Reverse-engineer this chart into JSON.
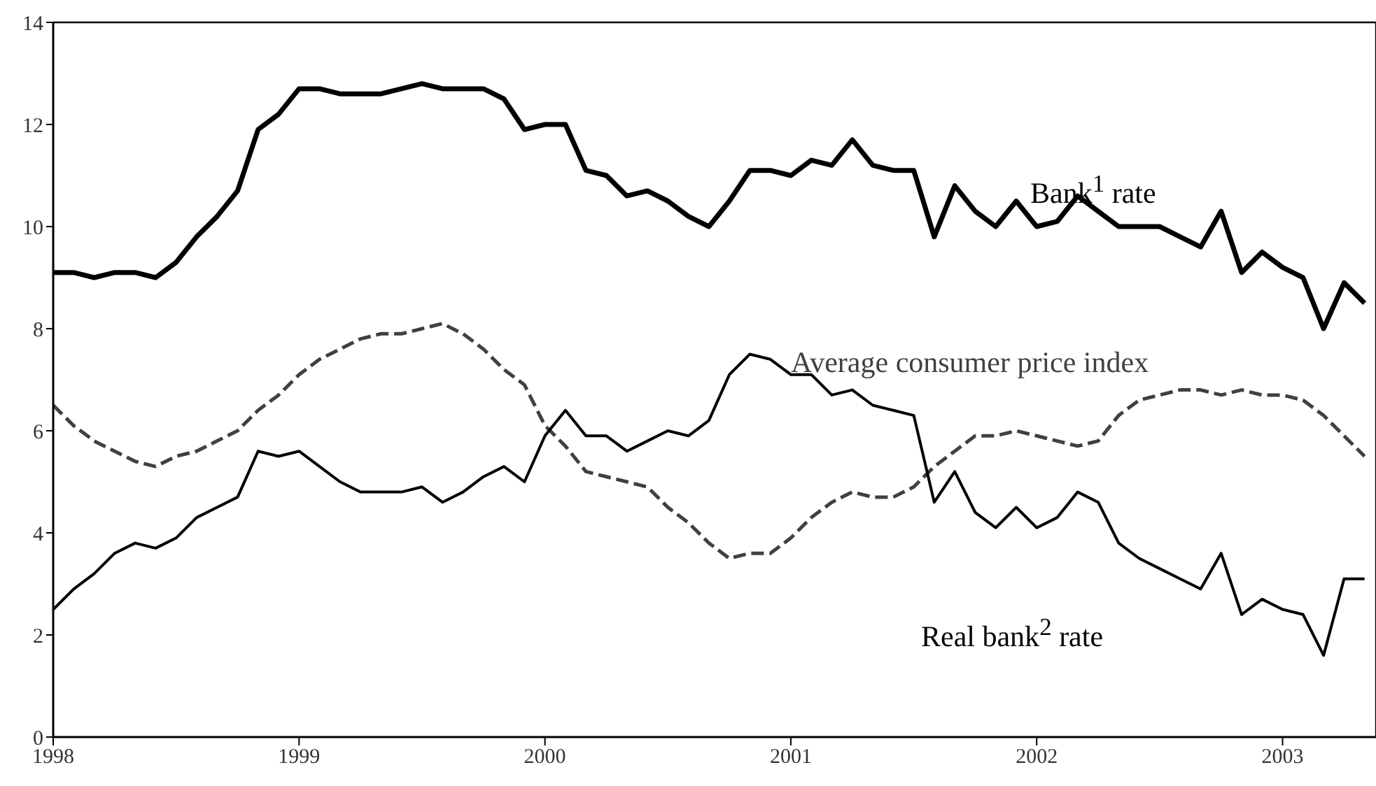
{
  "chart_data": {
    "type": "line",
    "x": [
      "1998-01",
      "1998-02",
      "1998-03",
      "1998-04",
      "1998-05",
      "1998-06",
      "1998-07",
      "1998-08",
      "1998-09",
      "1998-10",
      "1998-11",
      "1998-12",
      "1999-01",
      "1999-02",
      "1999-03",
      "1999-04",
      "1999-05",
      "1999-06",
      "1999-07",
      "1999-08",
      "1999-09",
      "1999-10",
      "1999-11",
      "1999-12",
      "2000-01",
      "2000-02",
      "2000-03",
      "2000-04",
      "2000-05",
      "2000-06",
      "2000-07",
      "2000-08",
      "2000-09",
      "2000-10",
      "2000-11",
      "2000-12",
      "2001-01",
      "2001-02",
      "2001-03",
      "2001-04",
      "2001-05",
      "2001-06",
      "2001-07",
      "2001-08",
      "2001-09",
      "2001-10",
      "2001-11",
      "2001-12",
      "2002-01",
      "2002-02",
      "2002-03",
      "2002-04",
      "2002-05",
      "2002-06",
      "2002-07",
      "2002-08",
      "2002-09",
      "2002-10",
      "2002-11",
      "2002-12",
      "2003-01",
      "2003-02",
      "2003-03",
      "2003-04",
      "2003-05"
    ],
    "series": [
      {
        "name": "Bank$^{1}$ rate",
        "color": "#000000",
        "line_style": "solid",
        "values": [
          9.1,
          9.1,
          9.0,
          9.1,
          9.1,
          9.0,
          9.3,
          9.8,
          10.2,
          10.7,
          11.9,
          12.2,
          12.7,
          12.7,
          12.6,
          12.6,
          12.6,
          12.7,
          12.8,
          12.7,
          12.7,
          12.7,
          12.5,
          11.9,
          12.0,
          12.0,
          11.1,
          11.0,
          10.6,
          10.7,
          10.5,
          10.2,
          10.0,
          10.5,
          11.1,
          11.1,
          11.0,
          11.3,
          11.2,
          11.7,
          11.2,
          11.1,
          11.1,
          9.8,
          10.8,
          10.3,
          10.0,
          10.5,
          10.0,
          10.1,
          10.6,
          10.3,
          10.0,
          10.0,
          10.0,
          9.8,
          9.6,
          10.3,
          9.1,
          9.5,
          9.2,
          9.0,
          8.0,
          8.9,
          8.5
        ]
      },
      {
        "name": "Average consumer price index",
        "color": "#404040",
        "line_style": "dashed",
        "values": [
          6.5,
          6.1,
          5.8,
          5.6,
          5.4,
          5.3,
          5.5,
          5.6,
          5.8,
          6.0,
          6.4,
          6.7,
          7.1,
          7.4,
          7.6,
          7.8,
          7.9,
          7.9,
          8.0,
          8.1,
          7.9,
          7.6,
          7.2,
          6.9,
          6.1,
          5.7,
          5.2,
          5.1,
          5.0,
          4.9,
          4.5,
          4.2,
          3.8,
          3.5,
          3.6,
          3.6,
          3.9,
          4.3,
          4.6,
          4.8,
          4.7,
          4.7,
          4.9,
          5.3,
          5.6,
          5.9,
          5.9,
          6.0,
          5.9,
          5.8,
          5.7,
          5.8,
          6.3,
          6.6,
          6.7,
          6.8,
          6.8,
          6.7,
          6.8,
          6.7,
          6.7,
          6.6,
          6.3,
          5.9,
          5.5
        ]
      },
      {
        "name": "Real bank$^{2}$ rate",
        "color": "#000000",
        "line_style": "solid",
        "values": [
          2.5,
          2.9,
          3.2,
          3.6,
          3.8,
          3.7,
          3.9,
          4.3,
          4.5,
          4.7,
          5.6,
          5.5,
          5.6,
          5.3,
          5.0,
          4.8,
          4.8,
          4.8,
          4.9,
          4.6,
          4.8,
          5.1,
          5.3,
          5.0,
          5.9,
          6.4,
          5.9,
          5.9,
          5.6,
          5.8,
          6.0,
          5.9,
          6.2,
          7.1,
          7.5,
          7.4,
          7.1,
          7.1,
          6.7,
          6.8,
          6.5,
          6.4,
          6.3,
          4.6,
          5.2,
          4.4,
          4.1,
          4.5,
          4.1,
          4.3,
          4.8,
          4.6,
          3.8,
          3.5,
          3.3,
          3.1,
          2.9,
          3.6,
          2.4,
          2.7,
          2.5,
          2.4,
          1.6,
          3.1,
          3.1
        ]
      }
    ],
    "xlim": [
      "1998-01",
      "2003-05-18"
    ],
    "xticks": [
      "1998",
      "1999",
      "2000",
      "2001",
      "2002",
      "2003"
    ],
    "ylim": [
      0,
      14
    ],
    "yticks": [
      0,
      2,
      4,
      6,
      8,
      10,
      12,
      14
    ],
    "grid": false
  }
}
